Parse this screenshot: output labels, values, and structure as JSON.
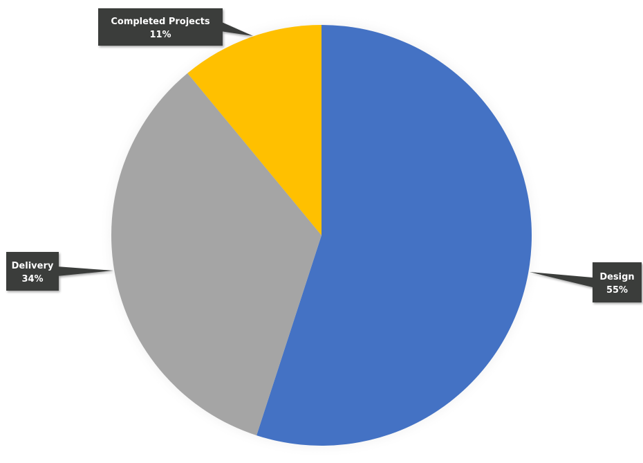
{
  "chart_data": {
    "type": "pie",
    "title": "",
    "slices": [
      {
        "label": "Design",
        "value": 55,
        "value_label": "55%",
        "color": "#4472C4"
      },
      {
        "label": "Delivery",
        "value": 34,
        "value_label": "34%",
        "color": "#A5A5A5"
      },
      {
        "label": "Completed Projects",
        "value": 11,
        "value_label": "11%",
        "color": "#FFC000"
      }
    ],
    "start_angle_deg": 0,
    "direction": "clockwise",
    "legend": "none",
    "data_labels": "callouts",
    "callout_color": "#3A3D3B"
  }
}
